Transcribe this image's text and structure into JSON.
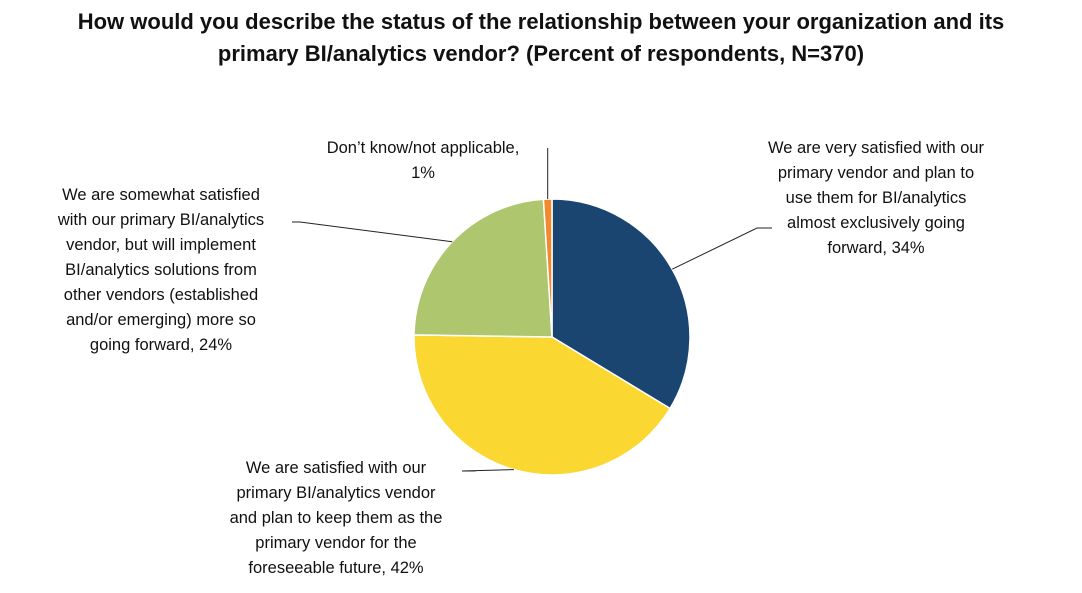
{
  "chart_data": {
    "type": "pie",
    "title": "How would you describe the status of the relationship between your organization and its\nprimary BI/analytics vendor? (Percent of respondents, N=370)",
    "series": [
      {
        "values": [
          34,
          42,
          24,
          1
        ],
        "categories": [
          "We are very satisfied with our primary vendor and plan to use them for BI/analytics almost exclusively going forward",
          "We are satisfied with our primary BI/analytics vendor and plan to keep them as the primary vendor for the foreseeable future",
          "We are somewhat satisfied with our primary BI/analytics vendor, but will implement BI/analytics solutions from other vendors (established and/or emerging) more so going forward",
          "Don’t know/not applicable"
        ]
      }
    ],
    "slice_colors": [
      "#1b4571",
      "#fbd731",
      "#aec76e",
      "#f28a2d"
    ],
    "data_labels": [
      "We are very satisfied with our\nprimary vendor and plan to\nuse them for BI/analytics\nalmost exclusively going\nforward, 34%",
      "We are satisfied with our\nprimary BI/analytics vendor\nand plan to keep them as the\nprimary vendor for the\nforeseeable future, 42%",
      "We are somewhat satisfied\nwith our primary BI/analytics\nvendor, but will implement\nBI/analytics solutions from\nother vendors (established\nand/or emerging) more so\ngoing forward, 24%",
      "Don’t know/not applicable,\n1%"
    ],
    "legend": "none"
  }
}
